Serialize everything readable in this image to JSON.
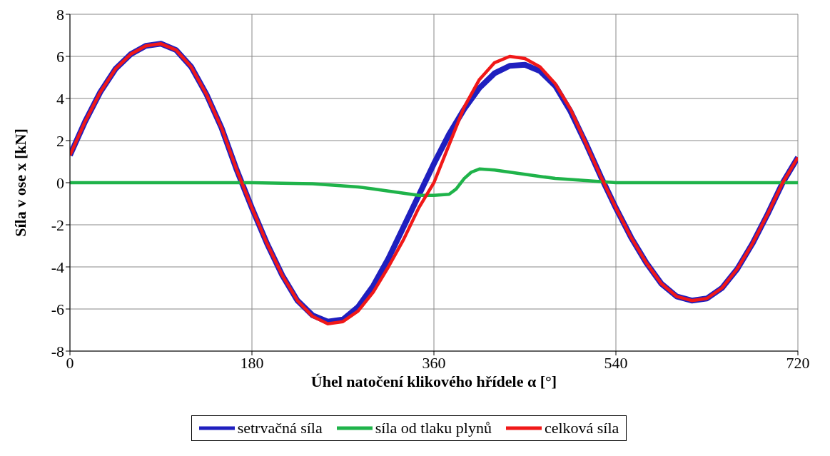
{
  "chart_data": {
    "type": "line",
    "xlabel": "Úhel natočení klikového hřídele α [°]",
    "ylabel": "Síla v ose x [kN]",
    "x": [
      0,
      15,
      30,
      45,
      60,
      75,
      90,
      105,
      120,
      135,
      150,
      165,
      180,
      195,
      210,
      225,
      240,
      255,
      270,
      285,
      300,
      315,
      330,
      345,
      360,
      375,
      390,
      405,
      420,
      435,
      450,
      465,
      480,
      495,
      510,
      525,
      540,
      555,
      570,
      585,
      600,
      615,
      630,
      645,
      660,
      675,
      690,
      705,
      720
    ],
    "xlim": [
      0,
      720
    ],
    "xticks": [
      0,
      180,
      360,
      540,
      720
    ],
    "ylim": [
      -8,
      8
    ],
    "yticks": [
      -8,
      -6,
      -4,
      -2,
      0,
      2,
      4,
      6,
      8
    ],
    "grid": true,
    "legend": "bottom",
    "marker": "none",
    "line_style": "solid",
    "series": [
      {
        "name": "setrvačná síla",
        "color": "#1f1fbf",
        "values": [
          1.3,
          2.9,
          4.3,
          5.4,
          6.1,
          6.5,
          6.6,
          6.3,
          5.5,
          4.2,
          2.6,
          0.6,
          -1.2,
          -2.9,
          -4.4,
          -5.6,
          -6.3,
          -6.6,
          -6.5,
          -5.9,
          -4.9,
          -3.6,
          -2.1,
          -0.6,
          0.9,
          2.3,
          3.5,
          4.5,
          5.2,
          5.55,
          5.6,
          5.3,
          4.6,
          3.4,
          1.9,
          0.3,
          -1.2,
          -2.6,
          -3.8,
          -4.8,
          -5.4,
          -5.6,
          -5.5,
          -5.0,
          -4.1,
          -2.9,
          -1.5,
          0,
          1.2
        ]
      },
      {
        "name": "síla od tlaku plynů",
        "color": "#1fb34a",
        "x": [
          0,
          60,
          120,
          180,
          240,
          255,
          270,
          285,
          300,
          315,
          330,
          345,
          360,
          375,
          382,
          390,
          397,
          405,
          420,
          435,
          450,
          465,
          480,
          495,
          510,
          525,
          540,
          600,
          660,
          720
        ],
        "values": [
          0,
          0,
          0,
          0,
          -0.05,
          -0.1,
          -0.15,
          -0.2,
          -0.3,
          -0.4,
          -0.5,
          -0.6,
          -0.6,
          -0.55,
          -0.3,
          0.2,
          0.5,
          0.65,
          0.6,
          0.5,
          0.4,
          0.3,
          0.2,
          0.15,
          0.1,
          0.05,
          0,
          0,
          0,
          0
        ]
      },
      {
        "name": "celková síla",
        "color": "#f01818",
        "values": [
          1.3,
          2.9,
          4.3,
          5.4,
          6.1,
          6.5,
          6.6,
          6.3,
          5.5,
          4.2,
          2.6,
          0.6,
          -1.2,
          -2.9,
          -4.4,
          -5.6,
          -6.35,
          -6.7,
          -6.6,
          -6.1,
          -5.2,
          -4.0,
          -2.7,
          -1.2,
          0.0,
          1.8,
          3.6,
          4.9,
          5.7,
          6.0,
          5.9,
          5.5,
          4.7,
          3.5,
          1.9,
          0.3,
          -1.2,
          -2.6,
          -3.8,
          -4.8,
          -5.4,
          -5.6,
          -5.5,
          -5.0,
          -4.1,
          -2.9,
          -1.5,
          0,
          1.2
        ]
      }
    ]
  }
}
